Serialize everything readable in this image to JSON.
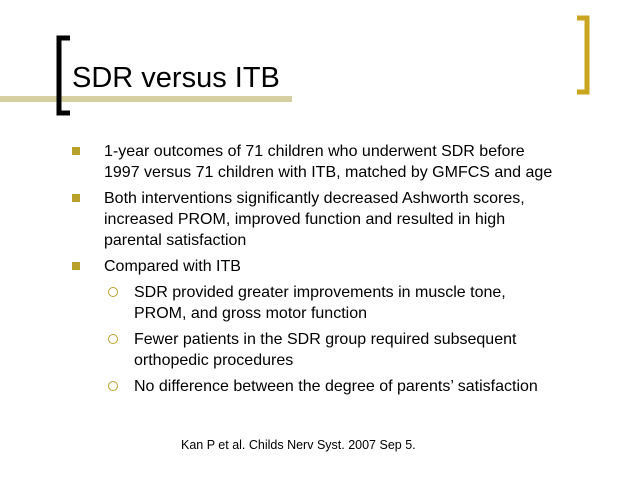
{
  "title": "SDR versus ITB",
  "bullets": [
    {
      "lines": [
        "1-year outcomes of 71 children who underwent SDR before",
        "1997 versus 71 children with ITB, matched by GMFCS and age"
      ]
    },
    {
      "lines": [
        "Both interventions significantly decreased Ashworth scores,",
        "increased PROM, improved function and resulted in high",
        "parental satisfaction"
      ]
    },
    {
      "lines": [
        "Compared with ITB"
      ],
      "sub": [
        {
          "lines": [
            "SDR provided greater improvements in muscle tone,",
            "PROM, and gross motor function"
          ]
        },
        {
          "lines": [
            "Fewer patients in the SDR group required subsequent",
            "orthopedic procedures"
          ]
        },
        {
          "lines": [
            "No difference between the degree of parents’ satisfaction"
          ]
        }
      ]
    }
  ],
  "citation": "Kan P et al.  Childs Nerv Syst. 2007 Sep 5."
}
